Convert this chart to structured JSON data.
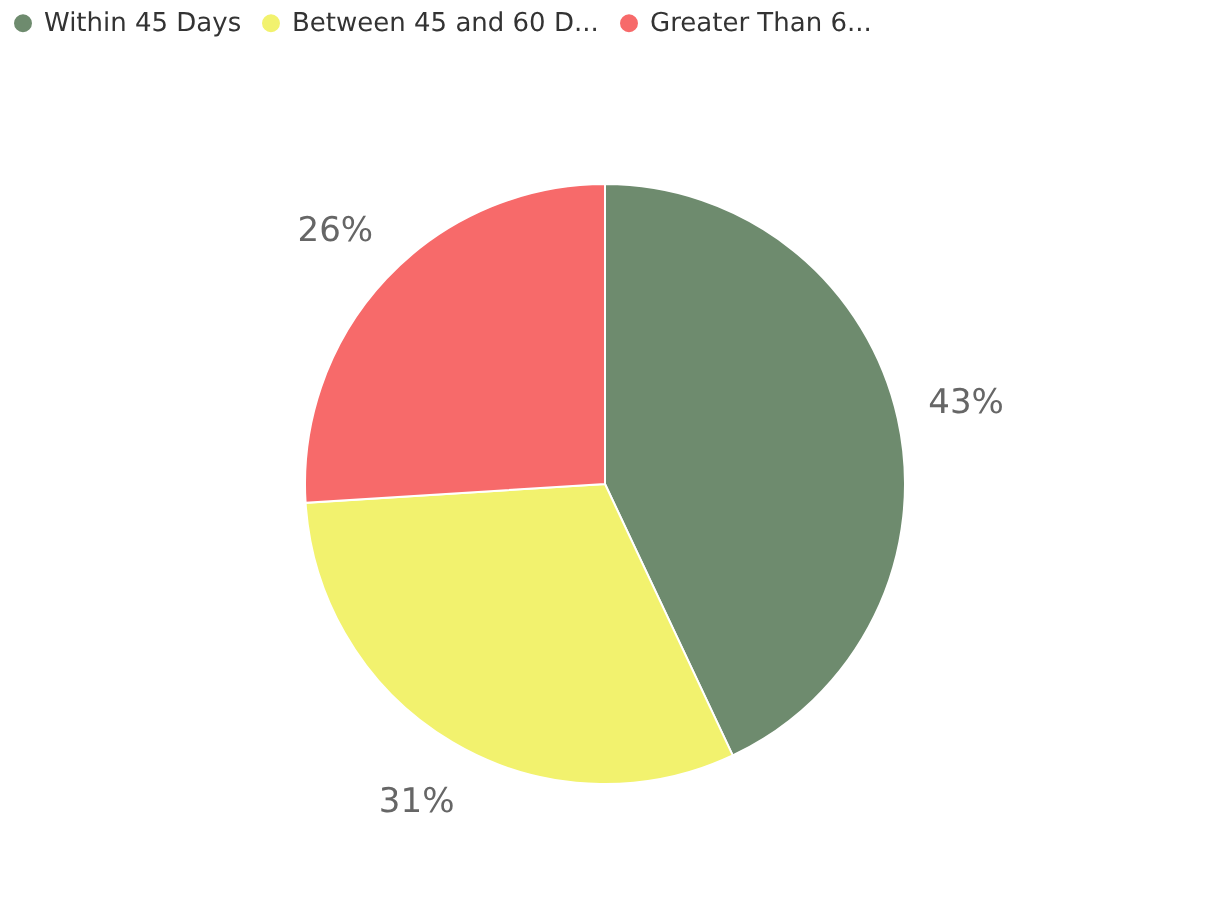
{
  "chart_data": {
    "type": "pie",
    "categories": [
      "Within 45 Days",
      "Between 45 and 60 D...",
      "Greater Than 6..."
    ],
    "values": [
      43,
      31,
      26
    ],
    "colors": [
      "#6e8b6e",
      "#f2f26e",
      "#f76a6a"
    ],
    "value_labels": [
      "43%",
      "31%",
      "26%"
    ],
    "legend": "top left"
  }
}
